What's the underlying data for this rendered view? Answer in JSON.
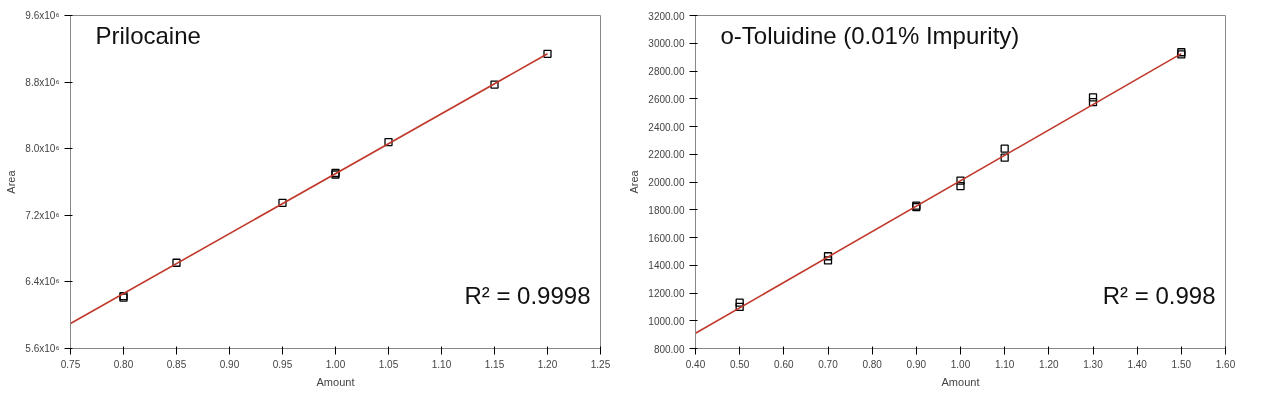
{
  "chart_data": [
    {
      "type": "scatter",
      "title": "Prilocaine",
      "xlabel": "Amount",
      "ylabel": "Area",
      "grid": false,
      "xlim": [
        0.75,
        1.25
      ],
      "xticks": [
        {
          "value": 0.75,
          "label": "0.75"
        },
        {
          "value": 0.8,
          "label": "0.80"
        },
        {
          "value": 0.85,
          "label": "0.85"
        },
        {
          "value": 0.9,
          "label": "0.90"
        },
        {
          "value": 0.95,
          "label": "0.95"
        },
        {
          "value": 1.0,
          "label": "1.00"
        },
        {
          "value": 1.05,
          "label": "1.05"
        },
        {
          "value": 1.1,
          "label": "1.10"
        },
        {
          "value": 1.15,
          "label": "1.15"
        },
        {
          "value": 1.2,
          "label": "1.20"
        },
        {
          "value": 1.25,
          "label": "1.25"
        }
      ],
      "ylim": [
        5600000,
        9600000
      ],
      "yticks": [
        {
          "value": 5600000,
          "label": "5.6x10⁶"
        },
        {
          "value": 6400000,
          "label": "6.4x10⁶"
        },
        {
          "value": 7200000,
          "label": "7.2x10⁶"
        },
        {
          "value": 8000000,
          "label": "8.0x10⁶"
        },
        {
          "value": 8800000,
          "label": "8.8x10⁶"
        },
        {
          "value": 9600000,
          "label": "9.6x10⁶"
        }
      ],
      "annotations": [
        "R² = 0.9998"
      ],
      "series": [
        {
          "marker": "square",
          "color": "#000000",
          "x": [
            0.8,
            0.8,
            0.85,
            0.95,
            1.0,
            1.0,
            1.05,
            1.15,
            1.2
          ],
          "values": [
            6210000,
            6230000,
            6630000,
            7350000,
            7690000,
            7710000,
            8080000,
            8770000,
            9140000
          ]
        },
        {
          "type": "line",
          "marker": "none",
          "color": "#c0392b",
          "x": [
            0.75,
            1.2
          ],
          "values": [
            5900000,
            9140000
          ]
        }
      ]
    },
    {
      "type": "scatter",
      "title": "o-Toluidine (0.01% Impurity)",
      "xlabel": "Amount",
      "ylabel": "Area",
      "grid": false,
      "xlim": [
        0.4,
        1.6
      ],
      "xticks": [
        {
          "value": 0.4,
          "label": "0.40"
        },
        {
          "value": 0.5,
          "label": "0.50"
        },
        {
          "value": 0.6,
          "label": "0.60"
        },
        {
          "value": 0.7,
          "label": "0.70"
        },
        {
          "value": 0.8,
          "label": "0.80"
        },
        {
          "value": 0.9,
          "label": "0.90"
        },
        {
          "value": 1.0,
          "label": "1.00"
        },
        {
          "value": 1.1,
          "label": "1.10"
        },
        {
          "value": 1.2,
          "label": "1.20"
        },
        {
          "value": 1.3,
          "label": "1.30"
        },
        {
          "value": 1.4,
          "label": "1.40"
        },
        {
          "value": 1.5,
          "label": "1.50"
        },
        {
          "value": 1.6,
          "label": "1.60"
        }
      ],
      "ylim": [
        800,
        3200
      ],
      "yticks": [
        {
          "value": 800,
          "label": "800.00"
        },
        {
          "value": 1000,
          "label": "1000.00"
        },
        {
          "value": 1200,
          "label": "1200.00"
        },
        {
          "value": 1400,
          "label": "1400.00"
        },
        {
          "value": 1600,
          "label": "1600.00"
        },
        {
          "value": 1800,
          "label": "1800.00"
        },
        {
          "value": 2000,
          "label": "2000.00"
        },
        {
          "value": 2200,
          "label": "2200.00"
        },
        {
          "value": 2400,
          "label": "2400.00"
        },
        {
          "value": 2600,
          "label": "2600.00"
        },
        {
          "value": 2800,
          "label": "2800.00"
        },
        {
          "value": 3000,
          "label": "3000.00"
        },
        {
          "value": 3200,
          "label": "3200.00"
        }
      ],
      "annotations": [
        "R² = 0.998"
      ],
      "series": [
        {
          "marker": "square",
          "color": "#000000",
          "x": [
            0.5,
            0.5,
            0.7,
            0.7,
            0.9,
            0.9,
            1.0,
            1.0,
            1.1,
            1.1,
            1.3,
            1.3,
            1.5,
            1.5
          ],
          "values": [
            1130,
            1100,
            1465,
            1435,
            1830,
            1820,
            2010,
            1970,
            2240,
            2175,
            2610,
            2575,
            2935,
            2920
          ]
        },
        {
          "type": "line",
          "marker": "none",
          "color": "#c0392b",
          "x": [
            0.4,
            1.5
          ],
          "values": [
            910,
            2925
          ]
        }
      ]
    }
  ]
}
